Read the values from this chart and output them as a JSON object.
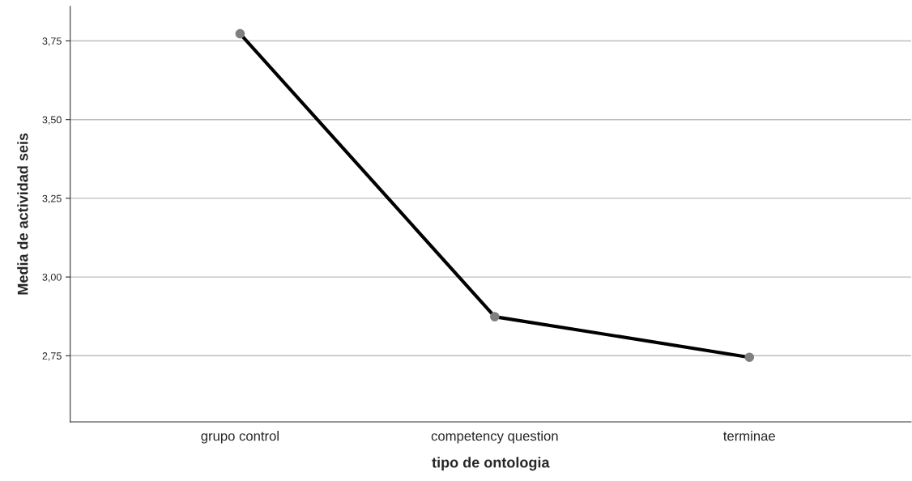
{
  "chart_data": {
    "type": "line",
    "xlabel": "tipo de ontologia",
    "ylabel": "Media de actividad seis",
    "categories": [
      "grupo control",
      "competency question",
      "terminae"
    ],
    "series": [
      {
        "color": "#000000",
        "values": [
          3.773,
          2.874,
          2.745
        ]
      }
    ],
    "ylim": [
      2.54,
      3.86
    ],
    "yticks": [
      {
        "value": 2.75,
        "label": "2,75"
      },
      {
        "value": 3.0,
        "label": "3,00"
      },
      {
        "value": 3.25,
        "label": "3,25"
      },
      {
        "value": 3.5,
        "label": "3,50"
      },
      {
        "value": 3.75,
        "label": "3,75"
      }
    ],
    "grid": "y",
    "marker": "circle",
    "line_style": "solid"
  }
}
